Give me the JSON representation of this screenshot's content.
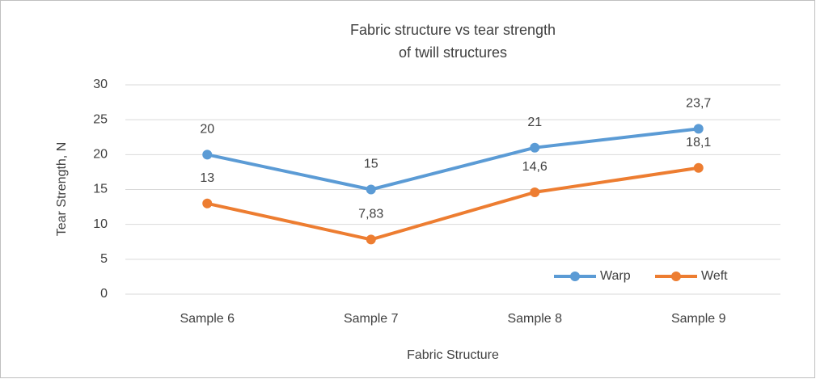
{
  "chart_data": {
    "type": "line",
    "title": [
      "Fabric structure vs tear strength",
      "of twill structures"
    ],
    "x_label": "Fabric Structure",
    "y_label": "Tear Strength, N",
    "categories": [
      "Sample 6",
      "Sample 7",
      "Sample 8",
      "Sample 9"
    ],
    "series": [
      {
        "name": "Warp",
        "color": "#5b9bd5",
        "values": [
          20,
          15,
          21,
          23.7
        ],
        "value_labels": [
          "20",
          "15",
          "21",
          "23,7"
        ]
      },
      {
        "name": "Weft",
        "color": "#ed7d31",
        "values": [
          13,
          7.83,
          14.6,
          18.1
        ],
        "value_labels": [
          "13",
          "7,83",
          "14,6",
          "18,1"
        ]
      }
    ],
    "ylim": [
      0,
      30
    ],
    "yticks": [
      0,
      5,
      10,
      15,
      20,
      25,
      30
    ],
    "grid": true,
    "legend": "lower right"
  }
}
